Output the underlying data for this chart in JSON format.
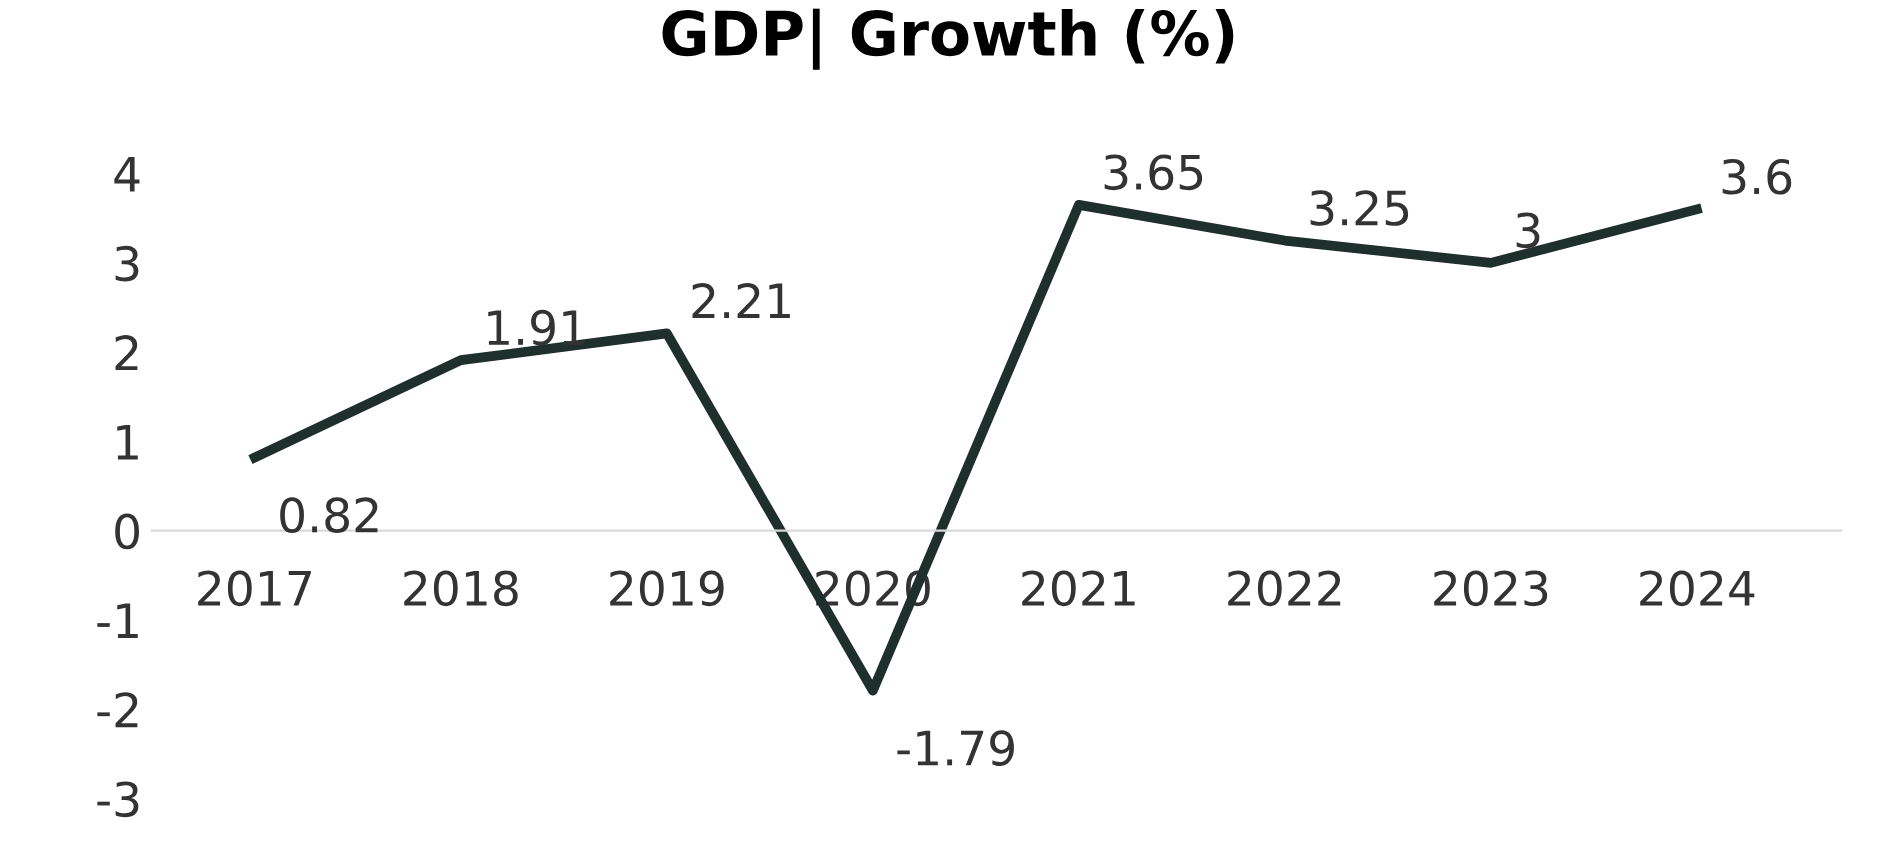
{
  "chart_data": {
    "type": "line",
    "title": "GDP| Growth (%)",
    "categories": [
      "2017",
      "2018",
      "2019",
      "2020",
      "2021",
      "2022",
      "2023",
      "2024"
    ],
    "series": [
      {
        "color": "#1e2f2c",
        "values": [
          0.82,
          1.91,
          2.21,
          -1.79,
          3.65,
          3.25,
          3,
          3.6
        ]
      }
    ],
    "ylim": [
      -3,
      4
    ],
    "yticks": [
      -3,
      -2,
      -1,
      0,
      1,
      2,
      3,
      4
    ],
    "data_labels": true,
    "grid": false,
    "legend": false,
    "marker": "none",
    "line_style": "solid"
  }
}
